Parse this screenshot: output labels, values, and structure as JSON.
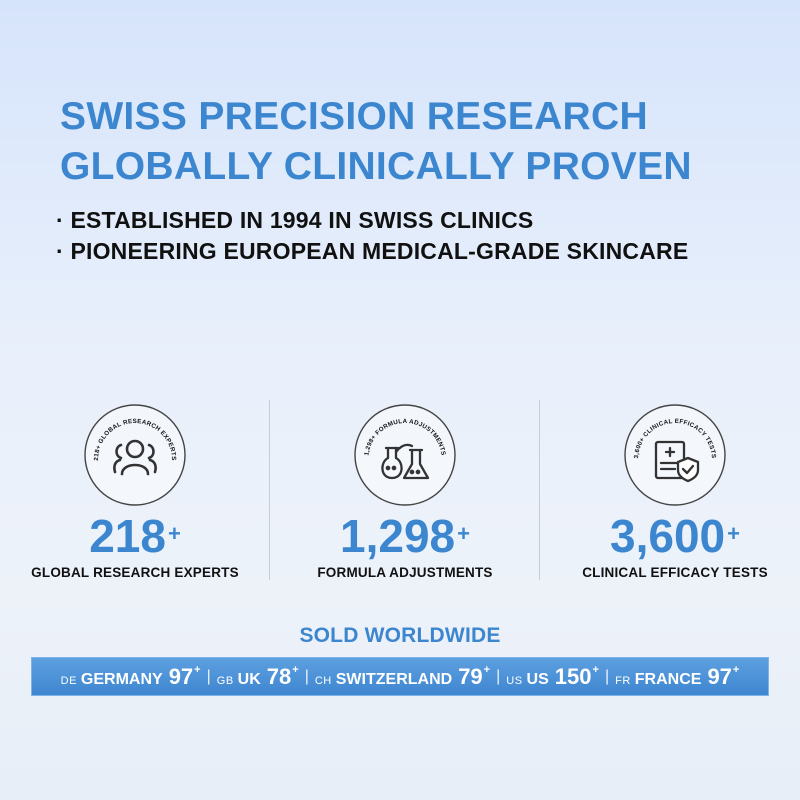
{
  "headline": {
    "line1": "SWISS PRECISION RESEARCH",
    "line2": "GLOBALLY CLINICALLY PROVEN"
  },
  "bullets": [
    "ESTABLISHED IN 1994 IN SWISS CLINICS",
    "PIONEERING EUROPEAN MEDICAL-GRADE SKINCARE"
  ],
  "bullet_marker": "·",
  "stats": [
    {
      "badge_text": "218+ GLOBAL RESEARCH EXPERTS",
      "icon": "people-group-icon",
      "number": "218",
      "suffix": "+",
      "label": "GLOBAL RESEARCH EXPERTS"
    },
    {
      "badge_text": "1,298+ FORMULA ADJUSTMENTS",
      "icon": "lab-flask-icon",
      "number": "1,298",
      "suffix": "+",
      "label": "FORMULA ADJUSTMENTS"
    },
    {
      "badge_text": "3,600+ CLINICAL EFFICACY TESTS",
      "icon": "medical-report-shield-icon",
      "number": "3,600",
      "suffix": "+",
      "label": "CLINICAL EFFICACY TESTS"
    }
  ],
  "sold": {
    "title": "SOLD WORLDWIDE",
    "separator": "|",
    "countries": [
      {
        "code": "DE",
        "name": "GERMANY",
        "value": "97",
        "suffix": "+"
      },
      {
        "code": "GB",
        "name": "UK",
        "value": "78",
        "suffix": "+"
      },
      {
        "code": "CH",
        "name": "SWITZERLAND",
        "value": "79",
        "suffix": "+"
      },
      {
        "code": "US",
        "name": "US",
        "value": "150",
        "suffix": "+"
      },
      {
        "code": "FR",
        "name": "FRANCE",
        "value": "97",
        "suffix": "+"
      }
    ]
  },
  "colors": {
    "accent": "#3b86cf",
    "text": "#111111",
    "bar": "#4a8fd6"
  }
}
